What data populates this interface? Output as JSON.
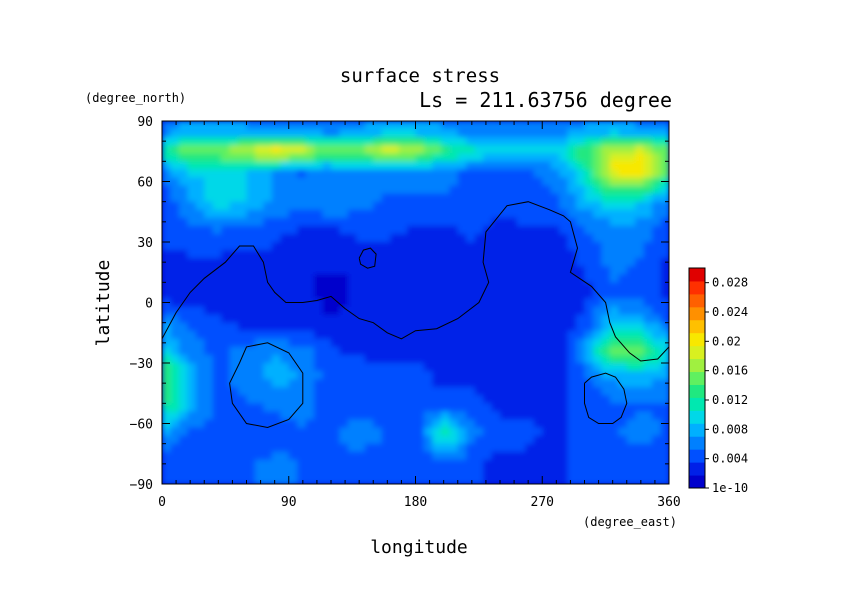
{
  "chart_data": {
    "type": "heatmap",
    "title": "surface stress",
    "subtitle": "Ls = 211.63756 degree",
    "xlabel": "longitude",
    "ylabel": "latitude",
    "x_units": "(degree_east)",
    "y_units": "(degree_north)",
    "xlim": [
      0,
      360
    ],
    "ylim": [
      -90,
      90
    ],
    "x_ticks": [
      "0",
      "90",
      "180",
      "270",
      "360"
    ],
    "y_ticks": [
      "90",
      "60",
      "30",
      "0",
      "−30",
      "−60",
      "−90"
    ],
    "colorbar": {
      "vmin": 0,
      "vmax": 0.03,
      "labels": [
        "1e-10",
        "0.004",
        "0.008",
        "0.012",
        "0.016",
        "0.02",
        "0.024",
        "0.028"
      ],
      "colors": [
        "#0000cc",
        "#0020e8",
        "#0050ff",
        "#0080ff",
        "#00b0ff",
        "#00d8e8",
        "#00e8b0",
        "#20e880",
        "#60f060",
        "#a0f040",
        "#d8f020",
        "#f8e800",
        "#ffc000",
        "#ff9000",
        "#ff6000",
        "#ff3000",
        "#e00000"
      ]
    },
    "grid": false,
    "stress_field": {
      "lon": [
        0,
        20,
        40,
        60,
        80,
        100,
        120,
        140,
        160,
        180,
        200,
        220,
        240,
        260,
        280,
        300,
        320,
        340,
        360
      ],
      "lat": [
        85,
        75,
        65,
        50,
        35,
        20,
        5,
        -10,
        -25,
        -35,
        -50,
        -65,
        -80
      ],
      "values": [
        [
          0.006,
          0.008,
          0.008,
          0.007,
          0.007,
          0.006,
          0.006,
          0.007,
          0.008,
          0.008,
          0.007,
          0.006,
          0.006,
          0.006,
          0.006,
          0.007,
          0.008,
          0.007,
          0.006
        ],
        [
          0.012,
          0.016,
          0.016,
          0.018,
          0.021,
          0.019,
          0.015,
          0.016,
          0.019,
          0.018,
          0.014,
          0.011,
          0.01,
          0.01,
          0.01,
          0.014,
          0.018,
          0.019,
          0.015
        ],
        [
          0.006,
          0.009,
          0.009,
          0.009,
          0.007,
          0.005,
          0.006,
          0.007,
          0.006,
          0.006,
          0.006,
          0.005,
          0.004,
          0.005,
          0.006,
          0.011,
          0.02,
          0.021,
          0.014
        ],
        [
          0.004,
          0.007,
          0.01,
          0.009,
          0.007,
          0.006,
          0.007,
          0.006,
          0.005,
          0.005,
          0.005,
          0.004,
          0.004,
          0.005,
          0.005,
          0.008,
          0.01,
          0.009,
          0.006
        ],
        [
          0.004,
          0.005,
          0.005,
          0.004,
          0.004,
          0.003,
          0.003,
          0.004,
          0.004,
          0.003,
          0.003,
          0.004,
          0.003,
          0.003,
          0.003,
          0.005,
          0.006,
          0.006,
          0.004
        ],
        [
          0.003,
          0.003,
          0.003,
          0.003,
          0.003,
          0.002,
          0.002,
          0.002,
          0.002,
          0.002,
          0.002,
          0.002,
          0.002,
          0.002,
          0.002,
          0.004,
          0.006,
          0.005,
          0.003
        ],
        [
          0.002,
          0.002,
          0.002,
          0.002,
          0.002,
          0.002,
          0.001,
          0.002,
          0.002,
          0.002,
          0.002,
          0.002,
          0.002,
          0.002,
          0.002,
          0.003,
          0.005,
          0.004,
          0.003
        ],
        [
          0.007,
          0.005,
          0.004,
          0.003,
          0.003,
          0.003,
          0.002,
          0.002,
          0.002,
          0.002,
          0.002,
          0.002,
          0.002,
          0.002,
          0.002,
          0.004,
          0.009,
          0.008,
          0.005
        ],
        [
          0.01,
          0.006,
          0.005,
          0.006,
          0.007,
          0.006,
          0.004,
          0.003,
          0.003,
          0.003,
          0.003,
          0.003,
          0.002,
          0.002,
          0.002,
          0.007,
          0.016,
          0.015,
          0.01
        ],
        [
          0.015,
          0.008,
          0.005,
          0.006,
          0.008,
          0.007,
          0.004,
          0.005,
          0.004,
          0.004,
          0.003,
          0.003,
          0.003,
          0.002,
          0.003,
          0.005,
          0.008,
          0.009,
          0.007
        ],
        [
          0.014,
          0.008,
          0.005,
          0.005,
          0.006,
          0.006,
          0.004,
          0.004,
          0.004,
          0.004,
          0.004,
          0.004,
          0.003,
          0.003,
          0.003,
          0.004,
          0.005,
          0.005,
          0.005
        ],
        [
          0.007,
          0.005,
          0.004,
          0.004,
          0.004,
          0.005,
          0.005,
          0.007,
          0.005,
          0.004,
          0.012,
          0.006,
          0.004,
          0.004,
          0.003,
          0.004,
          0.005,
          0.006,
          0.005
        ],
        [
          0.004,
          0.004,
          0.004,
          0.005,
          0.006,
          0.005,
          0.004,
          0.004,
          0.004,
          0.004,
          0.005,
          0.004,
          0.003,
          0.003,
          0.003,
          0.004,
          0.005,
          0.004,
          0.004
        ]
      ]
    },
    "topography_contours": [
      [
        [
          0,
          -18
        ],
        [
          10,
          -5
        ],
        [
          20,
          5
        ],
        [
          30,
          12
        ],
        [
          45,
          20
        ],
        [
          55,
          28
        ],
        [
          65,
          28
        ],
        [
          72,
          20
        ],
        [
          75,
          10
        ],
        [
          80,
          5
        ],
        [
          88,
          0
        ],
        [
          100,
          0
        ],
        [
          110,
          1
        ],
        [
          120,
          3
        ],
        [
          130,
          -3
        ],
        [
          140,
          -8
        ],
        [
          150,
          -10
        ],
        [
          160,
          -15
        ],
        [
          170,
          -18
        ],
        [
          180,
          -14
        ],
        [
          195,
          -13
        ],
        [
          210,
          -8
        ],
        [
          225,
          0
        ],
        [
          232,
          10
        ],
        [
          228,
          20
        ],
        [
          230,
          35
        ],
        [
          245,
          48
        ],
        [
          260,
          50
        ],
        [
          275,
          46
        ],
        [
          285,
          43
        ],
        [
          290,
          40
        ],
        [
          295,
          27
        ],
        [
          290,
          15
        ],
        [
          305,
          8
        ],
        [
          315,
          0
        ],
        [
          318,
          -10
        ],
        [
          322,
          -17
        ],
        [
          332,
          -25
        ],
        [
          340,
          -29
        ],
        [
          352,
          -28
        ],
        [
          360,
          -22
        ]
      ],
      [
        [
          55,
          -30
        ],
        [
          60,
          -22
        ],
        [
          75,
          -20
        ],
        [
          90,
          -25
        ],
        [
          100,
          -35
        ],
        [
          100,
          -50
        ],
        [
          90,
          -58
        ],
        [
          75,
          -62
        ],
        [
          60,
          -60
        ],
        [
          50,
          -50
        ],
        [
          48,
          -40
        ],
        [
          55,
          -30
        ]
      ],
      [
        [
          300,
          -40
        ],
        [
          305,
          -37
        ],
        [
          315,
          -35
        ],
        [
          322,
          -37
        ],
        [
          328,
          -43
        ],
        [
          330,
          -50
        ],
        [
          326,
          -57
        ],
        [
          320,
          -60
        ],
        [
          310,
          -60
        ],
        [
          303,
          -57
        ],
        [
          300,
          -50
        ],
        [
          300,
          -40
        ]
      ],
      [
        [
          140,
          22
        ],
        [
          143,
          26
        ],
        [
          148,
          27
        ],
        [
          152,
          24
        ],
        [
          151,
          18
        ],
        [
          146,
          17
        ],
        [
          141,
          19
        ],
        [
          140,
          22
        ]
      ]
    ]
  }
}
